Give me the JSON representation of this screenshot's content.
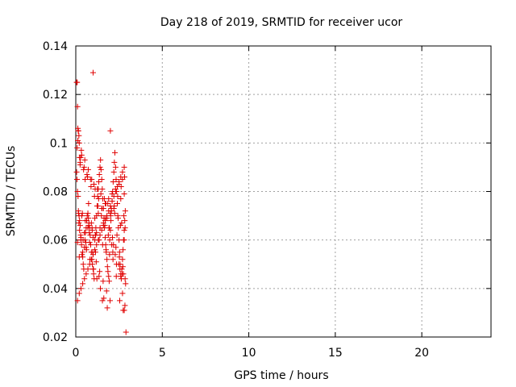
{
  "chart_data": {
    "type": "scatter",
    "title": "Day 218 of 2019, SRMTID for receiver ucor",
    "xlabel": "GPS time / hours",
    "ylabel": "SRMTID / TECUs",
    "xlim": [
      0,
      24
    ],
    "ylim": [
      0.02,
      0.14
    ],
    "xticks": [
      0,
      5,
      10,
      15,
      20
    ],
    "xtick_labels": [
      "0",
      "5",
      "10",
      "15",
      "20"
    ],
    "yticks": [
      0.02,
      0.04,
      0.06,
      0.08,
      0.1,
      0.12,
      0.14
    ],
    "ytick_labels": [
      "0.02",
      "0.04",
      "0.06",
      "0.08",
      "0.1",
      "0.12",
      "0.14"
    ],
    "grid": true,
    "marker": "+",
    "color": "#e00000",
    "series": [
      {
        "x": [
          0.05,
          0.08,
          0.1,
          0.12,
          0.15,
          0.18,
          0.2,
          0.22,
          0.25,
          0.05,
          0.07,
          0.1,
          0.13,
          0.16,
          0.19,
          0.22,
          0.25,
          0.28,
          0.3,
          0.33,
          0.36,
          0.4,
          0.43,
          0.46,
          0.5,
          0.53,
          0.56,
          0.6,
          0.63,
          0.66,
          0.7,
          0.73,
          0.76,
          0.8,
          0.83,
          0.86,
          0.9,
          0.93,
          0.96,
          1.0,
          1.03,
          1.06,
          1.1,
          1.13,
          1.16,
          1.2,
          1.23,
          1.26,
          1.3,
          1.33,
          1.36,
          1.4,
          1.43,
          1.46,
          1.5,
          1.53,
          1.56,
          1.6,
          1.63,
          1.66,
          1.7,
          1.73,
          1.76,
          1.8,
          1.83,
          1.86,
          1.9,
          1.93,
          1.96,
          2.0,
          2.03,
          2.06,
          2.1,
          2.13,
          2.16,
          2.2,
          2.23,
          2.26,
          2.3,
          2.33,
          2.36,
          2.4,
          2.43,
          2.46,
          2.5,
          2.53,
          2.56,
          2.6,
          2.63,
          2.66,
          2.7,
          2.73,
          2.76,
          2.8,
          2.83,
          2.86,
          0.1,
          0.2,
          0.3,
          0.4,
          0.5,
          0.6,
          0.7,
          0.8,
          0.9,
          1.0,
          1.1,
          1.2,
          1.3,
          1.4,
          1.5,
          1.6,
          1.7,
          1.8,
          1.9,
          2.0,
          2.1,
          2.2,
          2.3,
          2.4,
          2.5,
          2.6,
          2.7,
          2.8,
          0.15,
          0.35,
          0.55,
          0.75,
          0.95,
          1.15,
          1.35,
          1.55,
          1.75,
          1.95,
          2.15,
          2.35,
          2.55,
          2.75,
          2.85,
          0.1,
          0.3,
          0.5,
          0.7,
          0.9,
          1.1,
          1.3,
          1.5,
          1.7,
          1.9,
          2.1,
          2.3,
          2.5,
          2.7,
          2.8,
          0.2,
          0.4,
          0.6,
          0.8,
          1.0,
          1.2,
          1.4,
          1.6,
          1.8,
          2.0,
          2.2,
          2.4,
          2.6,
          2.8,
          0.25,
          0.45,
          0.65,
          0.85,
          1.05,
          1.25,
          1.45,
          1.65,
          1.85,
          2.05,
          2.25,
          2.45,
          2.65,
          2.85,
          0.12,
          0.32,
          0.52,
          0.72,
          0.92,
          1.12,
          1.32,
          1.52,
          1.72,
          1.92,
          2.12,
          2.32,
          2.52,
          2.72,
          0.18,
          0.38,
          0.58,
          0.78,
          0.98,
          1.18,
          1.38,
          1.58,
          1.78,
          1.98,
          2.18,
          2.38,
          2.58,
          2.78,
          0.08,
          0.28,
          0.48,
          0.68,
          0.88,
          1.08,
          1.28,
          1.48,
          1.68,
          1.88,
          2.08,
          2.28,
          2.48,
          2.68,
          2.88,
          0.22,
          0.42,
          0.62,
          0.82,
          1.02,
          1.22,
          1.42,
          1.62,
          1.82,
          2.02,
          2.22,
          2.42,
          2.62,
          2.82,
          0.14,
          0.34,
          0.54,
          0.74,
          0.94,
          1.14,
          1.34,
          1.54,
          1.74,
          1.94,
          2.14,
          2.34,
          2.54,
          2.74,
          2.84,
          1.0,
          2.0,
          2.6,
          2.7,
          2.8,
          2.9
        ],
        "y": [
          0.125,
          0.125,
          0.115,
          0.106,
          0.105,
          0.103,
          0.1,
          0.094,
          0.092,
          0.088,
          0.085,
          0.08,
          0.078,
          0.071,
          0.07,
          0.068,
          0.066,
          0.062,
          0.06,
          0.058,
          0.054,
          0.053,
          0.05,
          0.048,
          0.057,
          0.06,
          0.063,
          0.065,
          0.068,
          0.07,
          0.071,
          0.069,
          0.067,
          0.065,
          0.062,
          0.058,
          0.055,
          0.052,
          0.05,
          0.048,
          0.046,
          0.044,
          0.06,
          0.062,
          0.065,
          0.07,
          0.074,
          0.078,
          0.081,
          0.084,
          0.087,
          0.09,
          0.093,
          0.089,
          0.085,
          0.081,
          0.077,
          0.073,
          0.069,
          0.065,
          0.061,
          0.058,
          0.055,
          0.052,
          0.049,
          0.047,
          0.045,
          0.043,
          0.06,
          0.064,
          0.068,
          0.072,
          0.076,
          0.08,
          0.084,
          0.088,
          0.092,
          0.096,
          0.09,
          0.085,
          0.08,
          0.075,
          0.07,
          0.065,
          0.06,
          0.055,
          0.05,
          0.046,
          0.044,
          0.048,
          0.052,
          0.056,
          0.06,
          0.064,
          0.068,
          0.072,
          0.035,
          0.038,
          0.04,
          0.042,
          0.044,
          0.046,
          0.048,
          0.05,
          0.052,
          0.054,
          0.056,
          0.058,
          0.06,
          0.062,
          0.064,
          0.066,
          0.068,
          0.07,
          0.072,
          0.074,
          0.076,
          0.078,
          0.08,
          0.082,
          0.084,
          0.086,
          0.088,
          0.09,
          0.072,
          0.07,
          0.068,
          0.066,
          0.064,
          0.062,
          0.06,
          0.058,
          0.056,
          0.054,
          0.052,
          0.05,
          0.048,
          0.046,
          0.044,
          0.059,
          0.061,
          0.063,
          0.065,
          0.067,
          0.069,
          0.071,
          0.073,
          0.075,
          0.077,
          0.079,
          0.081,
          0.083,
          0.085,
          0.06,
          0.053,
          0.055,
          0.057,
          0.059,
          0.061,
          0.063,
          0.065,
          0.067,
          0.069,
          0.071,
          0.073,
          0.075,
          0.077,
          0.079,
          0.091,
          0.089,
          0.087,
          0.085,
          0.083,
          0.081,
          0.079,
          0.077,
          0.075,
          0.073,
          0.071,
          0.069,
          0.067,
          0.065,
          0.101,
          0.097,
          0.093,
          0.089,
          0.085,
          0.081,
          0.077,
          0.073,
          0.069,
          0.065,
          0.061,
          0.057,
          0.053,
          0.049,
          0.067,
          0.071,
          0.059,
          0.063,
          0.055,
          0.051,
          0.047,
          0.043,
          0.039,
          0.035,
          0.058,
          0.062,
          0.066,
          0.07,
          0.098,
          0.094,
          0.09,
          0.086,
          0.082,
          0.078,
          0.074,
          0.07,
          0.066,
          0.062,
          0.058,
          0.054,
          0.05,
          0.046,
          0.042,
          0.064,
          0.06,
          0.056,
          0.052,
          0.048,
          0.044,
          0.04,
          0.036,
          0.032,
          0.07,
          0.074,
          0.078,
          0.082,
          0.086,
          0.105,
          0.095,
          0.085,
          0.075,
          0.065,
          0.055,
          0.045,
          0.035,
          0.075,
          0.065,
          0.055,
          0.045,
          0.035,
          0.031,
          0.033,
          0.129,
          0.105,
          0.045,
          0.038,
          0.031,
          0.022
        ]
      }
    ]
  }
}
